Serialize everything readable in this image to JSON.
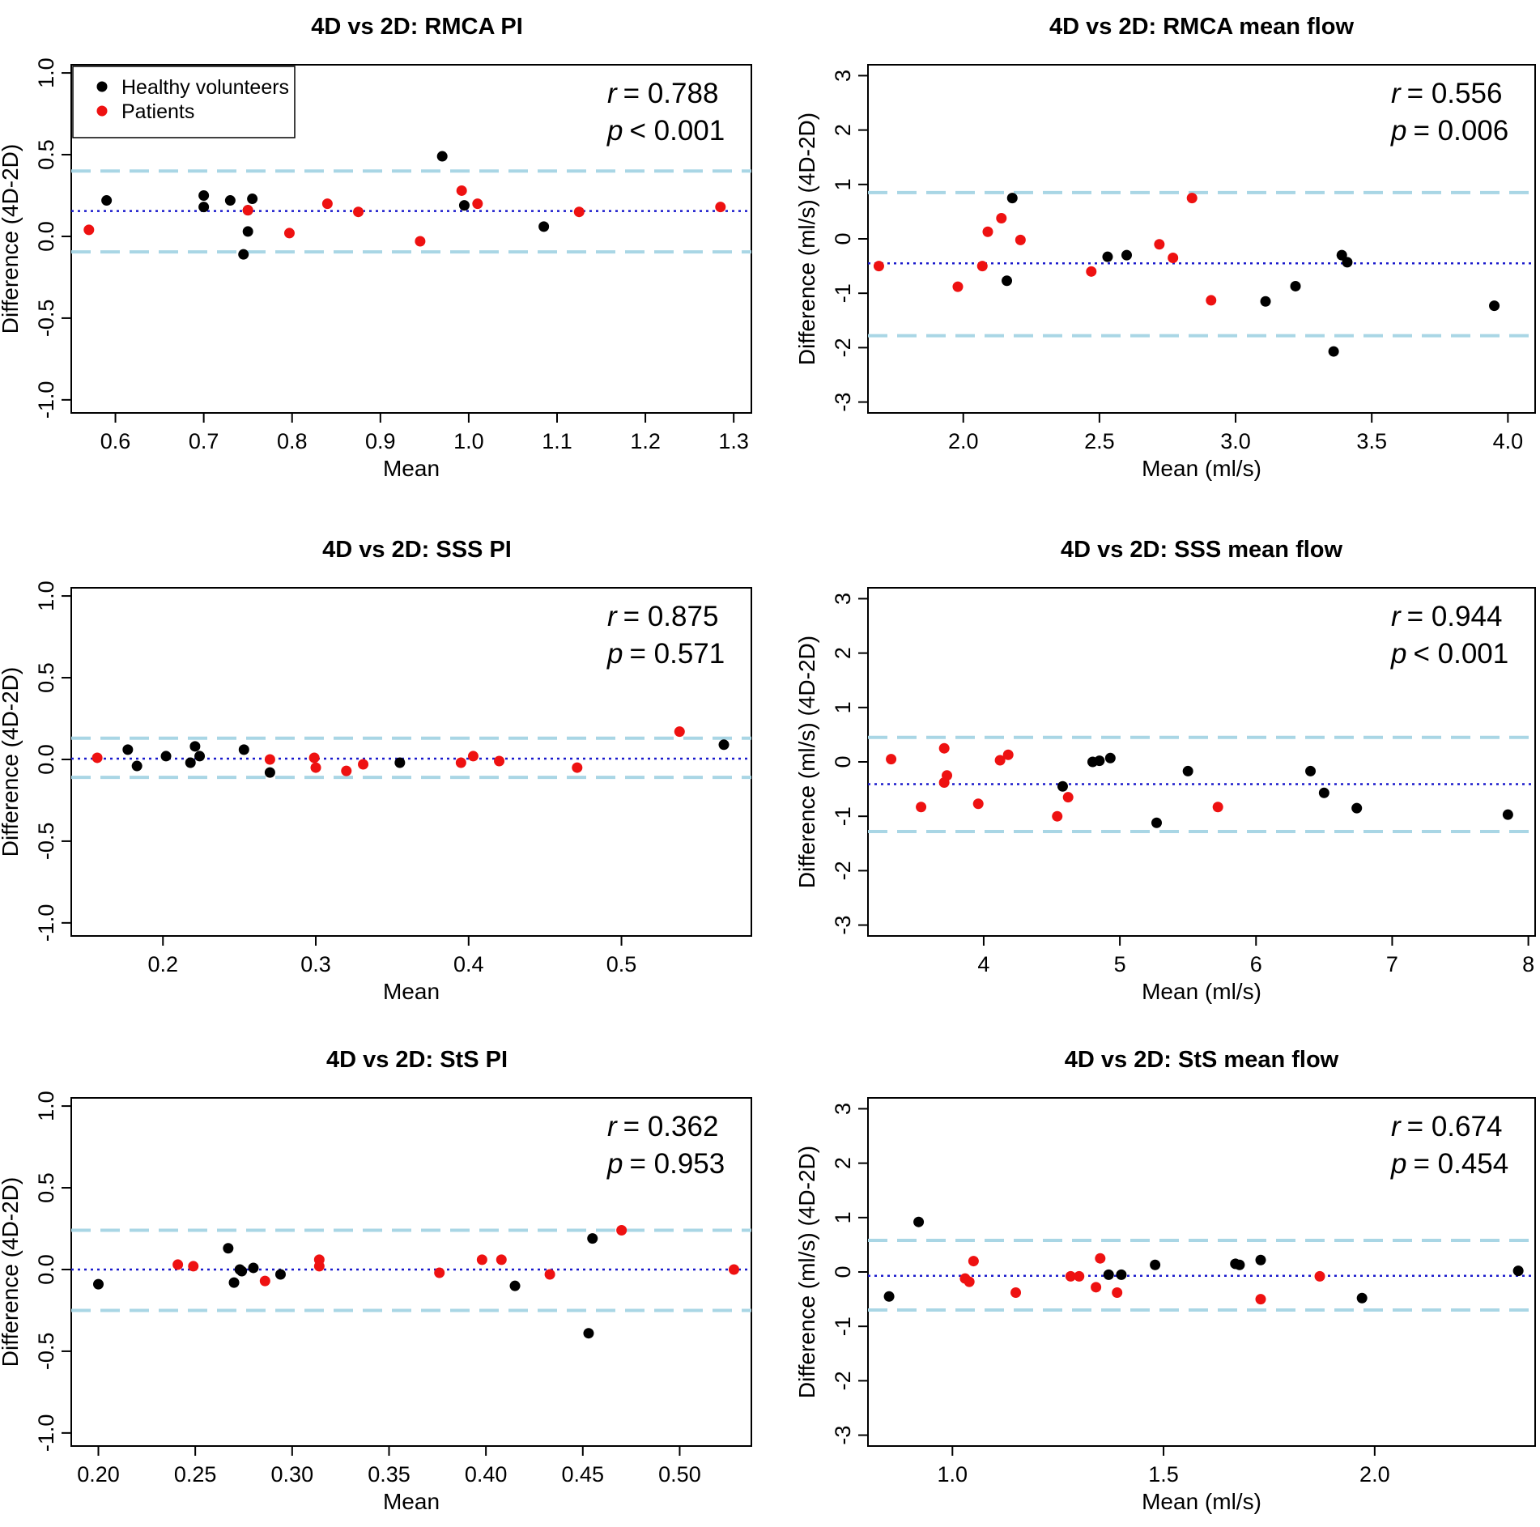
{
  "legend": {
    "entries": [
      {
        "label": "Healthy volunteers",
        "color": "#000000"
      },
      {
        "label": "Patients",
        "color": "#ee1111"
      }
    ]
  },
  "colors": {
    "healthy": "#000000",
    "patient": "#ee1111",
    "mean_line": "#1a1acc",
    "limit_line": "#a9d6e5"
  },
  "chart_data": [
    {
      "type": "scatter",
      "title": "4D vs 2D: RMCA PI",
      "xlabel": "Mean",
      "ylabel": "Difference (4D-2D)",
      "xlim": [
        0.55,
        1.32
      ],
      "ylim": [
        -1.08,
        1.05
      ],
      "xticks": [
        "0.6",
        "0.7",
        "0.8",
        "0.9",
        "1.0",
        "1.1",
        "1.2",
        "1.3"
      ],
      "yticks": [
        "-1.0",
        "-0.5",
        "0.0",
        "0.5",
        "1.0"
      ],
      "stats": {
        "r_label": "r",
        "r_text": "= 0.788",
        "p_label": "p",
        "p_text": "< 0.001"
      },
      "mean_diff": 0.155,
      "loa": [
        -0.095,
        0.4
      ],
      "series": [
        {
          "name": "Healthy volunteers",
          "points": [
            [
              0.59,
              0.22
            ],
            [
              0.7,
              0.25
            ],
            [
              0.7,
              0.18
            ],
            [
              0.73,
              0.22
            ],
            [
              0.745,
              -0.11
            ],
            [
              0.75,
              0.03
            ],
            [
              0.755,
              0.23
            ],
            [
              0.97,
              0.49
            ],
            [
              0.995,
              0.19
            ],
            [
              1.085,
              0.06
            ],
            [
              0.75,
              0.16
            ]
          ]
        },
        {
          "name": "Patients",
          "points": [
            [
              0.57,
              0.04
            ],
            [
              0.75,
              0.16
            ],
            [
              0.797,
              0.02
            ],
            [
              0.84,
              0.2
            ],
            [
              0.875,
              0.15
            ],
            [
              0.945,
              -0.03
            ],
            [
              0.992,
              0.28
            ],
            [
              1.01,
              0.2
            ],
            [
              1.125,
              0.15
            ],
            [
              1.285,
              0.18
            ]
          ]
        }
      ]
    },
    {
      "type": "scatter",
      "title": "4D vs 2D: RMCA mean flow",
      "xlabel": "Mean (ml/s)",
      "ylabel": "Difference (ml/s) (4D-2D)",
      "xlim": [
        1.65,
        4.1
      ],
      "ylim": [
        -3.2,
        3.2
      ],
      "xticks": [
        "2.0",
        "2.5",
        "3.0",
        "3.5",
        "4.0"
      ],
      "yticks": [
        "-3",
        "-2",
        "-1",
        "0",
        "1",
        "2",
        "3"
      ],
      "stats": {
        "r_label": "r",
        "r_text": "= 0.556",
        "p_label": "p",
        "p_text": "= 0.006"
      },
      "mean_diff": -0.45,
      "loa": [
        -1.78,
        0.85
      ],
      "series": [
        {
          "name": "Healthy volunteers",
          "points": [
            [
              2.18,
              0.75
            ],
            [
              2.16,
              -0.77
            ],
            [
              2.53,
              -0.33
            ],
            [
              2.6,
              -0.3
            ],
            [
              3.11,
              -1.15
            ],
            [
              3.22,
              -0.87
            ],
            [
              3.36,
              -2.07
            ],
            [
              3.39,
              -0.3
            ],
            [
              3.41,
              -0.43
            ],
            [
              3.95,
              -1.23
            ]
          ]
        },
        {
          "name": "Patients",
          "points": [
            [
              1.69,
              -0.5
            ],
            [
              1.98,
              -0.88
            ],
            [
              2.07,
              -0.5
            ],
            [
              2.09,
              0.13
            ],
            [
              2.14,
              0.38
            ],
            [
              2.21,
              -0.02
            ],
            [
              2.47,
              -0.6
            ],
            [
              2.72,
              -0.1
            ],
            [
              2.77,
              -0.35
            ],
            [
              2.84,
              0.75
            ],
            [
              2.91,
              -1.13
            ]
          ]
        }
      ]
    },
    {
      "type": "scatter",
      "title": "4D vs 2D: SSS PI",
      "xlabel": "Mean",
      "ylabel": "Difference (4D-2D)",
      "xlim": [
        0.14,
        0.585
      ],
      "ylim": [
        -1.08,
        1.05
      ],
      "xticks": [
        "0.2",
        "0.3",
        "0.4",
        "0.5"
      ],
      "yticks": [
        "-1.0",
        "-0.5",
        "0.0",
        "0.5",
        "1.0"
      ],
      "stats": {
        "r_label": "r",
        "r_text": "= 0.875",
        "p_label": "p",
        "p_text": "= 0.571"
      },
      "mean_diff": 0.005,
      "loa": [
        -0.11,
        0.13
      ],
      "series": [
        {
          "name": "Healthy volunteers",
          "points": [
            [
              0.177,
              0.06
            ],
            [
              0.183,
              -0.04
            ],
            [
              0.202,
              0.02
            ],
            [
              0.218,
              -0.02
            ],
            [
              0.221,
              0.08
            ],
            [
              0.224,
              0.02
            ],
            [
              0.253,
              0.06
            ],
            [
              0.27,
              -0.08
            ],
            [
              0.355,
              -0.02
            ],
            [
              0.567,
              0.09
            ]
          ]
        },
        {
          "name": "Patients",
          "points": [
            [
              0.157,
              0.01
            ],
            [
              0.27,
              0.0
            ],
            [
              0.299,
              0.01
            ],
            [
              0.3,
              -0.05
            ],
            [
              0.32,
              -0.07
            ],
            [
              0.331,
              -0.03
            ],
            [
              0.395,
              -0.02
            ],
            [
              0.403,
              0.02
            ],
            [
              0.42,
              -0.01
            ],
            [
              0.471,
              -0.05
            ],
            [
              0.538,
              0.17
            ]
          ]
        }
      ]
    },
    {
      "type": "scatter",
      "title": "4D vs 2D: SSS mean flow",
      "xlabel": "Mean (ml/s)",
      "ylabel": "Difference (ml/s) (4D-2D)",
      "xlim": [
        3.15,
        8.05
      ],
      "ylim": [
        -3.2,
        3.2
      ],
      "xticks": [
        "4",
        "5",
        "6",
        "7",
        "8"
      ],
      "yticks": [
        "-3",
        "-2",
        "-1",
        "0",
        "1",
        "2",
        "3"
      ],
      "stats": {
        "r_label": "r",
        "r_text": "= 0.944",
        "p_label": "p",
        "p_text": "< 0.001"
      },
      "mean_diff": -0.41,
      "loa": [
        -1.28,
        0.45
      ],
      "series": [
        {
          "name": "Healthy volunteers",
          "points": [
            [
              4.58,
              -0.45
            ],
            [
              4.8,
              0.0
            ],
            [
              4.85,
              0.02
            ],
            [
              4.93,
              0.07
            ],
            [
              5.27,
              -1.12
            ],
            [
              5.5,
              -0.17
            ],
            [
              6.4,
              -0.17
            ],
            [
              6.5,
              -0.57
            ],
            [
              6.74,
              -0.85
            ],
            [
              7.85,
              -0.97
            ]
          ]
        },
        {
          "name": "Patients",
          "points": [
            [
              3.32,
              0.05
            ],
            [
              3.54,
              -0.83
            ],
            [
              3.71,
              0.25
            ],
            [
              3.71,
              -0.38
            ],
            [
              3.73,
              -0.25
            ],
            [
              3.96,
              -0.77
            ],
            [
              4.12,
              0.03
            ],
            [
              4.18,
              0.13
            ],
            [
              4.54,
              -1.0
            ],
            [
              4.62,
              -0.65
            ],
            [
              5.72,
              -0.83
            ]
          ]
        }
      ]
    },
    {
      "type": "scatter",
      "title": "4D vs 2D: StS PI",
      "xlabel": "Mean",
      "ylabel": "Difference (4D-2D)",
      "xlim": [
        0.186,
        0.537
      ],
      "ylim": [
        -1.08,
        1.05
      ],
      "xticks": [
        "0.20",
        "0.25",
        "0.30",
        "0.35",
        "0.40",
        "0.45",
        "0.50"
      ],
      "yticks": [
        "-1.0",
        "-0.5",
        "0.0",
        "0.5",
        "1.0"
      ],
      "stats": {
        "r_label": "r",
        "r_text": "= 0.362",
        "p_label": "p",
        "p_text": "= 0.953"
      },
      "mean_diff": 0.0,
      "loa": [
        -0.25,
        0.24
      ],
      "series": [
        {
          "name": "Healthy volunteers",
          "points": [
            [
              0.2,
              -0.09
            ],
            [
              0.267,
              0.13
            ],
            [
              0.27,
              -0.08
            ],
            [
              0.273,
              0.0
            ],
            [
              0.274,
              -0.01
            ],
            [
              0.28,
              0.01
            ],
            [
              0.294,
              -0.03
            ],
            [
              0.415,
              -0.1
            ],
            [
              0.453,
              -0.39
            ],
            [
              0.455,
              0.19
            ]
          ]
        },
        {
          "name": "Patients",
          "points": [
            [
              0.241,
              0.03
            ],
            [
              0.249,
              0.02
            ],
            [
              0.286,
              -0.07
            ],
            [
              0.314,
              0.06
            ],
            [
              0.314,
              0.02
            ],
            [
              0.376,
              -0.02
            ],
            [
              0.398,
              0.06
            ],
            [
              0.408,
              0.06
            ],
            [
              0.433,
              -0.03
            ],
            [
              0.47,
              0.24
            ],
            [
              0.528,
              0.0
            ]
          ]
        }
      ]
    },
    {
      "type": "scatter",
      "title": "4D vs 2D: StS mean flow",
      "xlabel": "Mean (ml/s)",
      "ylabel": "Difference (ml/s) (4D-2D)",
      "xlim": [
        0.8,
        2.38
      ],
      "ylim": [
        -3.2,
        3.2
      ],
      "xticks": [
        "1.0",
        "1.5",
        "2.0"
      ],
      "yticks": [
        "-3",
        "-2",
        "-1",
        "0",
        "1",
        "2",
        "3"
      ],
      "stats": {
        "r_label": "r",
        "r_text": "= 0.674",
        "p_label": "p",
        "p_text": "= 0.454"
      },
      "mean_diff": -0.07,
      "loa": [
        -0.7,
        0.58
      ],
      "series": [
        {
          "name": "Healthy volunteers",
          "points": [
            [
              0.85,
              -0.45
            ],
            [
              0.92,
              0.92
            ],
            [
              1.37,
              -0.05
            ],
            [
              1.4,
              -0.05
            ],
            [
              1.48,
              0.13
            ],
            [
              1.67,
              0.15
            ],
            [
              1.68,
              0.13
            ],
            [
              1.73,
              0.22
            ],
            [
              1.97,
              -0.48
            ],
            [
              2.34,
              0.02
            ]
          ]
        },
        {
          "name": "Patients",
          "points": [
            [
              1.03,
              -0.12
            ],
            [
              1.04,
              -0.18
            ],
            [
              1.05,
              0.2
            ],
            [
              1.15,
              -0.38
            ],
            [
              1.28,
              -0.08
            ],
            [
              1.3,
              -0.08
            ],
            [
              1.34,
              -0.28
            ],
            [
              1.35,
              0.25
            ],
            [
              1.39,
              -0.38
            ],
            [
              1.87,
              -0.08
            ],
            [
              1.73,
              -0.5
            ]
          ]
        }
      ]
    }
  ]
}
